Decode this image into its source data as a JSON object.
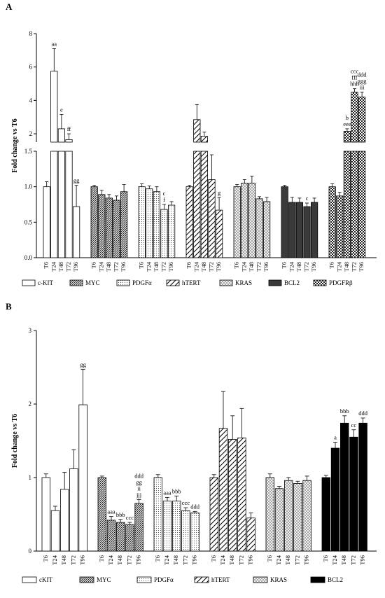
{
  "chart_data": [
    {
      "type": "bar",
      "panel": "A",
      "ylabel": "Fold change vs T6",
      "axis_break": {
        "lower_range": [
          0,
          1.5
        ],
        "upper_range": [
          1.5,
          8
        ]
      },
      "yticks_lower": [
        "0.0",
        "0.5",
        "1.0",
        "1.5"
      ],
      "yticks_upper": [
        "2",
        "4",
        "6",
        "8"
      ],
      "categories": [
        "T6",
        "T24",
        "T48",
        "T72",
        "T96"
      ],
      "legend_placement": "bottom",
      "series": [
        {
          "name": "c-KIT",
          "pattern": "white",
          "values": [
            1.0,
            5.75,
            2.3,
            1.65,
            0.72
          ],
          "errors": [
            0.07,
            1.35,
            0.85,
            0.35,
            0.3
          ],
          "annotations": [
            "",
            "aa",
            "e",
            "ff",
            "gg"
          ]
        },
        {
          "name": "MYC",
          "pattern": "dense-diagonal",
          "values": [
            1.0,
            0.89,
            0.84,
            0.81,
            0.93
          ],
          "errors": [
            0.02,
            0.06,
            0.05,
            0.06,
            0.1
          ],
          "annotations": [
            "",
            "",
            "",
            "",
            ""
          ]
        },
        {
          "name": "PDGFα",
          "pattern": "dots",
          "values": [
            1.0,
            0.97,
            0.93,
            0.68,
            0.74
          ],
          "errors": [
            0.04,
            0.04,
            0.07,
            0.07,
            0.05
          ],
          "annotations": [
            "",
            "",
            "",
            "c\nf",
            ""
          ]
        },
        {
          "name": "hTERT",
          "pattern": "wide-diagonal",
          "values": [
            1.0,
            2.85,
            1.85,
            1.1,
            0.67
          ],
          "errors": [
            0.02,
            0.9,
            0.25,
            0.35,
            0.18
          ],
          "annotations": [
            "",
            "",
            "",
            "",
            "g"
          ]
        },
        {
          "name": "KRAS",
          "pattern": "crosshatch",
          "values": [
            1.0,
            1.05,
            1.05,
            0.83,
            0.79
          ],
          "errors": [
            0.03,
            0.05,
            0.1,
            0.03,
            0.06
          ],
          "annotations": [
            "",
            "",
            "",
            "",
            ""
          ]
        },
        {
          "name": "BCL2",
          "pattern": "dark",
          "values": [
            1.0,
            0.78,
            0.78,
            0.72,
            0.78
          ],
          "errors": [
            0.02,
            0.07,
            0.06,
            0.05,
            0.06
          ],
          "annotations": [
            "",
            "",
            "",
            "c",
            ""
          ]
        },
        {
          "name": "PDGFRβ",
          "pattern": "checker",
          "values": [
            1.0,
            0.87,
            2.15,
            4.5,
            4.2
          ],
          "errors": [
            0.04,
            0.05,
            0.15,
            0.2,
            0.3
          ],
          "annotations": [
            "",
            "",
            "b\neee",
            "ccc\nfff\nhhh",
            "ddd\nggg\niii"
          ]
        }
      ]
    },
    {
      "type": "bar",
      "panel": "B",
      "ylabel": "Fold change vs T6",
      "ylim": [
        0,
        3
      ],
      "yticks": [
        "0",
        "1",
        "2",
        "3"
      ],
      "categories": [
        "T6",
        "T24",
        "T48",
        "T72",
        "T96"
      ],
      "legend_placement": "bottom",
      "series": [
        {
          "name": "cKIT",
          "pattern": "white",
          "values": [
            1.0,
            0.55,
            0.84,
            1.12,
            1.99
          ],
          "errors": [
            0.05,
            0.06,
            0.23,
            0.26,
            0.48
          ],
          "annotations": [
            "",
            "",
            "",
            "",
            "gg"
          ]
        },
        {
          "name": "MYC",
          "pattern": "dense-diagonal",
          "values": [
            1.0,
            0.42,
            0.39,
            0.36,
            0.65
          ],
          "errors": [
            0.02,
            0.05,
            0.04,
            0.03,
            0.05
          ],
          "annotations": [
            "",
            "aaa",
            "bbb",
            "ccc",
            "ddd\ngg\nii\njjj"
          ]
        },
        {
          "name": "PDGFα",
          "pattern": "dots",
          "values": [
            1.0,
            0.68,
            0.68,
            0.55,
            0.52
          ],
          "errors": [
            0.04,
            0.05,
            0.07,
            0.04,
            0.02
          ],
          "annotations": [
            "",
            "aaa",
            "bbb",
            "ccc",
            "ddd"
          ]
        },
        {
          "name": "hTERT",
          "pattern": "wide-diagonal",
          "values": [
            1.0,
            1.67,
            1.52,
            1.54,
            0.45
          ],
          "errors": [
            0.04,
            0.5,
            0.32,
            0.4,
            0.07
          ],
          "annotations": [
            "",
            "",
            "",
            "",
            ""
          ]
        },
        {
          "name": "KRAS",
          "pattern": "crosshatch",
          "values": [
            1.0,
            0.85,
            0.96,
            0.92,
            0.96
          ],
          "errors": [
            0.05,
            0.03,
            0.04,
            0.03,
            0.06
          ],
          "annotations": [
            "",
            "",
            "",
            "",
            ""
          ]
        },
        {
          "name": "BCL2",
          "pattern": "black",
          "values": [
            1.0,
            1.4,
            1.74,
            1.55,
            1.74
          ],
          "errors": [
            0.03,
            0.08,
            0.1,
            0.1,
            0.07
          ],
          "annotations": [
            "",
            "a",
            "bbb",
            "cc",
            "ddd"
          ]
        }
      ]
    }
  ]
}
